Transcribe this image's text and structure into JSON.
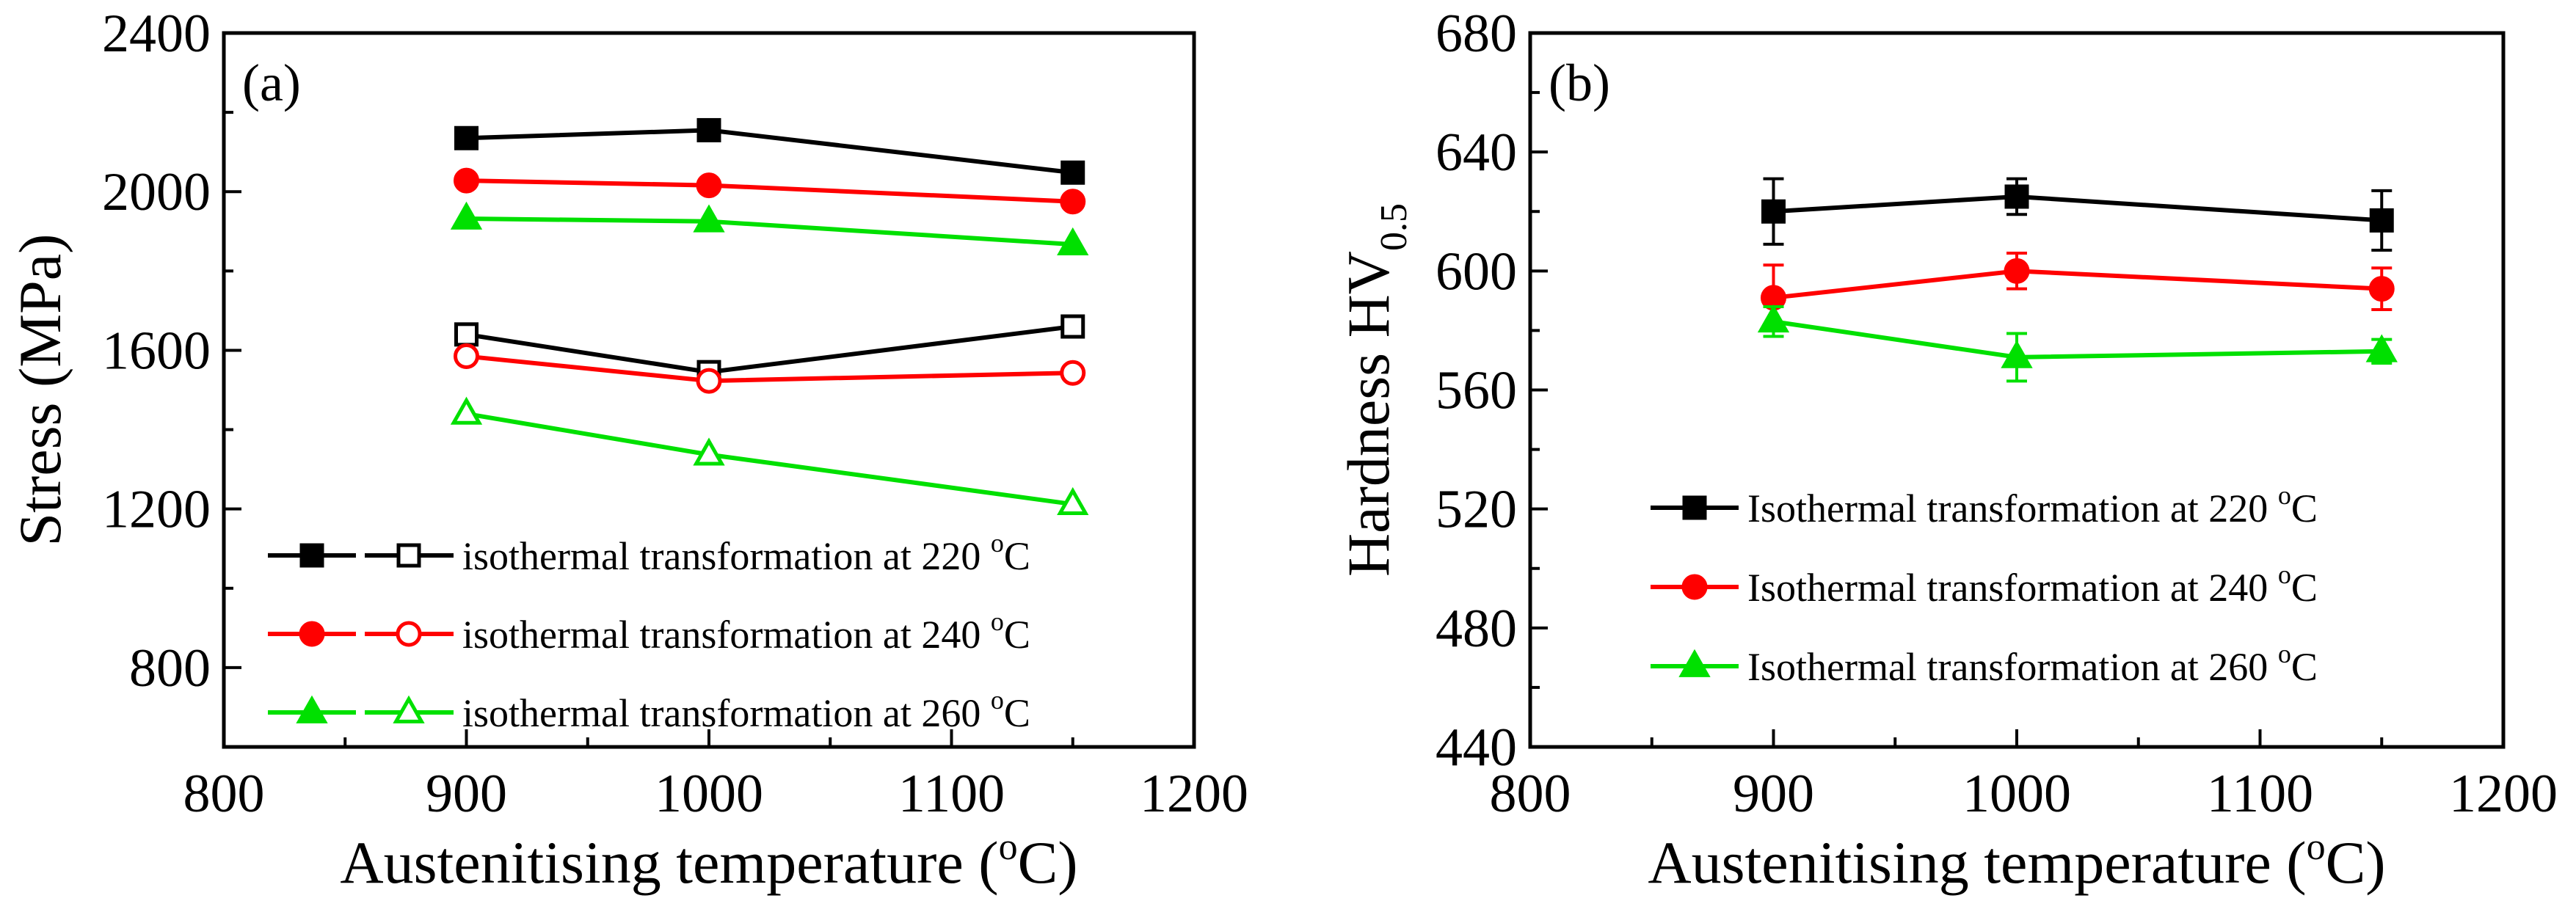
{
  "chart_data": [
    {
      "panel_label": "(a)",
      "type": "line",
      "xlabel": "Austenitising temperature (",
      "xlabel_sup": "o",
      "xlabel_end": "C)",
      "ylabel": "Stress (MPa)",
      "xlim": [
        800,
        1200
      ],
      "ylim": [
        600,
        2400
      ],
      "xticks": [
        "800",
        "900",
        "1000",
        "1100",
        "1200"
      ],
      "yticks": [
        "800",
        "1200",
        "1600",
        "2000",
        "2400"
      ],
      "x": [
        900,
        1000,
        1150
      ],
      "series": [
        {
          "name": "220-filled",
          "color": "#000000",
          "marker": "square",
          "filled": true,
          "values": [
            2135,
            2155,
            2048
          ]
        },
        {
          "name": "240-filled",
          "color": "#ff0000",
          "marker": "circle",
          "filled": true,
          "values": [
            2028,
            2016,
            1975
          ]
        },
        {
          "name": "260-filled",
          "color": "#00e000",
          "marker": "triangle",
          "filled": true,
          "values": [
            1932,
            1925,
            1867
          ]
        },
        {
          "name": "220-open",
          "color": "#000000",
          "marker": "square",
          "filled": false,
          "values": [
            1640,
            1545,
            1660
          ]
        },
        {
          "name": "240-open",
          "color": "#ff0000",
          "marker": "circle",
          "filled": false,
          "values": [
            1585,
            1523,
            1543
          ]
        },
        {
          "name": "260-open",
          "color": "#00e000",
          "marker": "triangle",
          "filled": false,
          "values": [
            1440,
            1337,
            1212
          ]
        }
      ],
      "legend": [
        {
          "label": "isothermal transformation at 220 ",
          "sup": "o",
          "unit": "C",
          "color": "#000000",
          "marker": "square"
        },
        {
          "label": "isothermal transformation at 240 ",
          "sup": "o",
          "unit": "C",
          "color": "#ff0000",
          "marker": "circle"
        },
        {
          "label": "isothermal transformation at 260 ",
          "sup": "o",
          "unit": "C",
          "color": "#00e000",
          "marker": "triangle"
        }
      ]
    },
    {
      "panel_label": "(b)",
      "type": "line",
      "xlabel": "Austenitising temperature (",
      "xlabel_sup": "o",
      "xlabel_end": "C)",
      "ylabel": "Hardness HV",
      "ylabel_sub": "0.5",
      "xlim": [
        800,
        1200
      ],
      "ylim": [
        440,
        680
      ],
      "xticks": [
        "800",
        "900",
        "1000",
        "1100",
        "1200"
      ],
      "yticks": [
        "440",
        "480",
        "520",
        "560",
        "600",
        "640",
        "680"
      ],
      "x": [
        900,
        1000,
        1150
      ],
      "series": [
        {
          "name": "Isothermal transformation at 220 oC",
          "color": "#000000",
          "marker": "square",
          "filled": true,
          "values": [
            620,
            625,
            617
          ],
          "errors": [
            11,
            6,
            10
          ]
        },
        {
          "name": "Isothermal transformation at 240 oC",
          "color": "#ff0000",
          "marker": "circle",
          "filled": true,
          "values": [
            591,
            600,
            594
          ],
          "errors": [
            11,
            6,
            7
          ]
        },
        {
          "name": "Isothermal transformation at 260 oC",
          "color": "#00e000",
          "marker": "triangle",
          "filled": true,
          "values": [
            583,
            571,
            573
          ],
          "errors": [
            5,
            8,
            4
          ]
        }
      ],
      "legend": [
        {
          "label": "Isothermal transformation at 220 ",
          "sup": "o",
          "unit": "C",
          "color": "#000000",
          "marker": "square"
        },
        {
          "label": "Isothermal transformation at 240 ",
          "sup": "o",
          "unit": "C",
          "color": "#ff0000",
          "marker": "circle"
        },
        {
          "label": "Isothermal transformation at 260 ",
          "sup": "o",
          "unit": "C",
          "color": "#00e000",
          "marker": "triangle"
        }
      ]
    }
  ]
}
